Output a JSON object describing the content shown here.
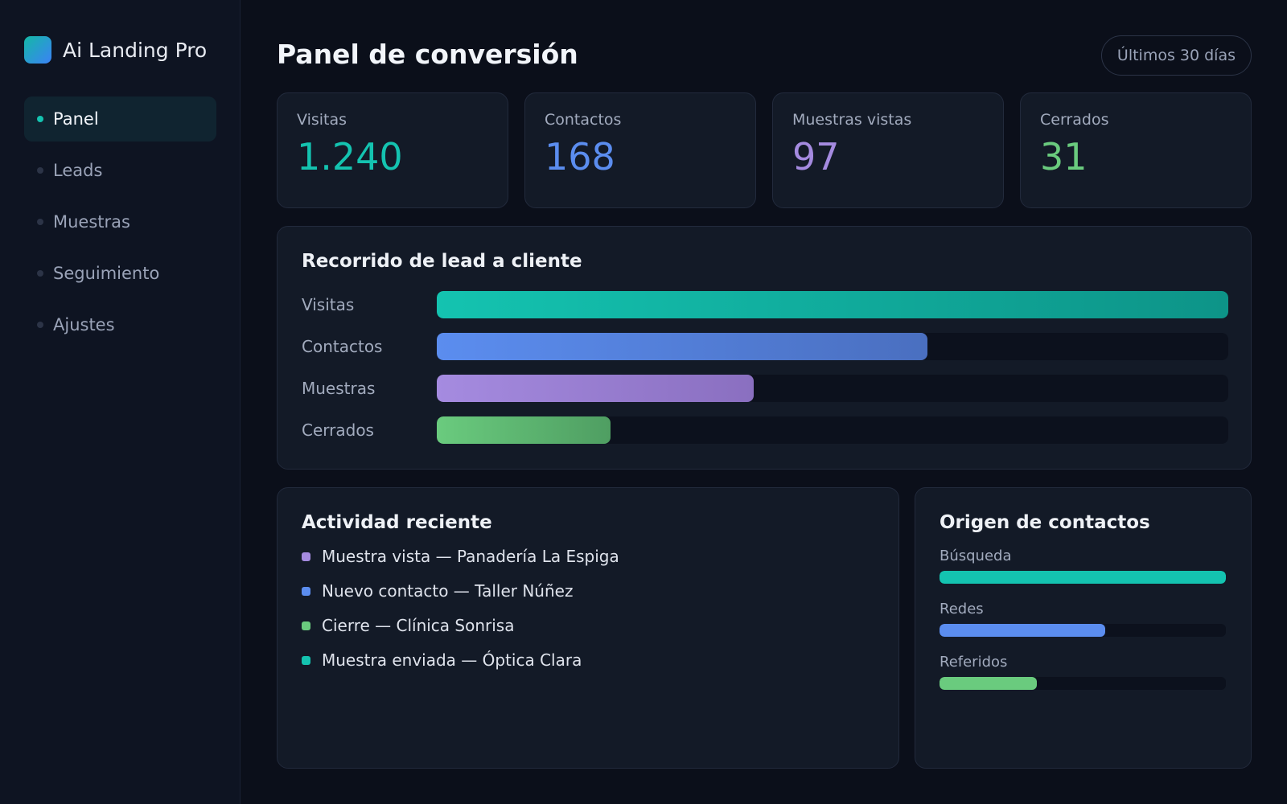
{
  "app": {
    "name": "Ai Landing Pro"
  },
  "sidebar": {
    "items": [
      {
        "label": "Panel",
        "active": true
      },
      {
        "label": "Leads",
        "active": false
      },
      {
        "label": "Muestras",
        "active": false
      },
      {
        "label": "Seguimiento",
        "active": false
      },
      {
        "label": "Ajustes",
        "active": false
      }
    ]
  },
  "header": {
    "title": "Panel de conversión",
    "range_label": "Últimos 30 días"
  },
  "kpis": [
    {
      "label": "Visitas",
      "value": "1.240",
      "color": "#14c3b0"
    },
    {
      "label": "Contactos",
      "value": "168",
      "color": "#5b8def"
    },
    {
      "label": "Muestras vistas",
      "value": "97",
      "color": "#a58be0"
    },
    {
      "label": "Cerrados",
      "value": "31",
      "color": "#6acb7e"
    }
  ],
  "funnel": {
    "title": "Recorrido de lead a cliente",
    "rows": [
      {
        "label": "Visitas",
        "fraction": 1.0,
        "color_start": "#14c3b0",
        "color_end": "#0d9488"
      },
      {
        "label": "Contactos",
        "fraction": 0.62,
        "color_start": "#5b8def",
        "color_end": "#4a6fc0"
      },
      {
        "label": "Muestras",
        "fraction": 0.4,
        "color_start": "#a58be0",
        "color_end": "#8a6fc0"
      },
      {
        "label": "Cerrados",
        "fraction": 0.22,
        "color_start": "#6acb7e",
        "color_end": "#4f9e62"
      }
    ]
  },
  "activity": {
    "title": "Actividad reciente",
    "items": [
      {
        "text": "Muestra vista — Panadería La Espiga",
        "color": "#a58be0"
      },
      {
        "text": "Nuevo contacto — Taller Núñez",
        "color": "#5b8def"
      },
      {
        "text": "Cierre — Clínica Sonrisa",
        "color": "#6acb7e"
      },
      {
        "text": "Muestra enviada — Óptica Clara",
        "color": "#14c3b0"
      }
    ]
  },
  "sources": {
    "title": "Origen de contactos",
    "items": [
      {
        "label": "Búsqueda",
        "fraction": 1.0,
        "color": "#14c3b0"
      },
      {
        "label": "Redes",
        "fraction": 0.58,
        "color": "#5b8def"
      },
      {
        "label": "Referidos",
        "fraction": 0.34,
        "color": "#6acb7e"
      }
    ]
  }
}
